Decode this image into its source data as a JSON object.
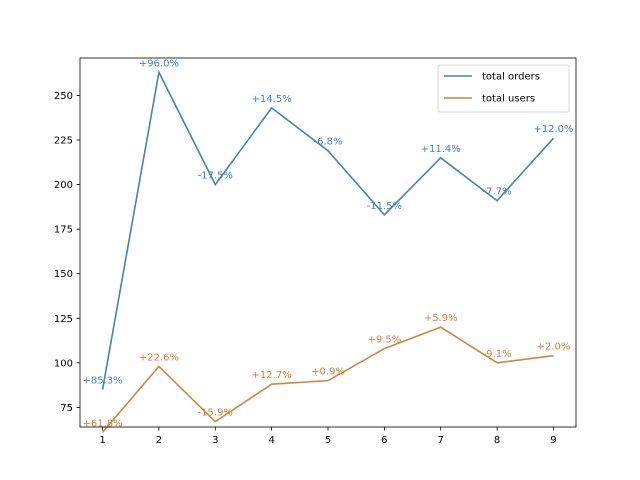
{
  "chart_data": {
    "type": "line",
    "title": "",
    "xlabel": "",
    "ylabel": "",
    "x": [
      1,
      2,
      3,
      4,
      5,
      6,
      7,
      8,
      9
    ],
    "xlim": [
      0.6,
      9.4
    ],
    "ylim": [
      64,
      271
    ],
    "xticks": [
      1,
      2,
      3,
      4,
      5,
      6,
      7,
      8,
      9
    ],
    "yticks": [
      75,
      100,
      125,
      150,
      175,
      200,
      225,
      250
    ],
    "grid": false,
    "legend_position": "top-right",
    "series": [
      {
        "name": "total orders",
        "color": "#4682b4",
        "values": [
          85,
          263,
          200,
          243,
          219,
          183,
          215,
          191,
          226
        ],
        "labels": [
          "+85.3%",
          "+96.0%",
          "-17.5%",
          "+14.5%",
          "-6.8%",
          "-11.5%",
          "+11.4%",
          "-7.7%",
          "+12.0%"
        ]
      },
      {
        "name": "total users",
        "color": "#cd853f",
        "values": [
          61,
          98,
          67,
          88,
          90,
          108,
          120,
          100,
          104
        ],
        "labels": [
          "+61.8%",
          "+22.6%",
          "-15.9%",
          "+12.7%",
          "+0.9%",
          "+9.5%",
          "+5.9%",
          "-9.1%",
          "+2.0%"
        ]
      }
    ]
  }
}
